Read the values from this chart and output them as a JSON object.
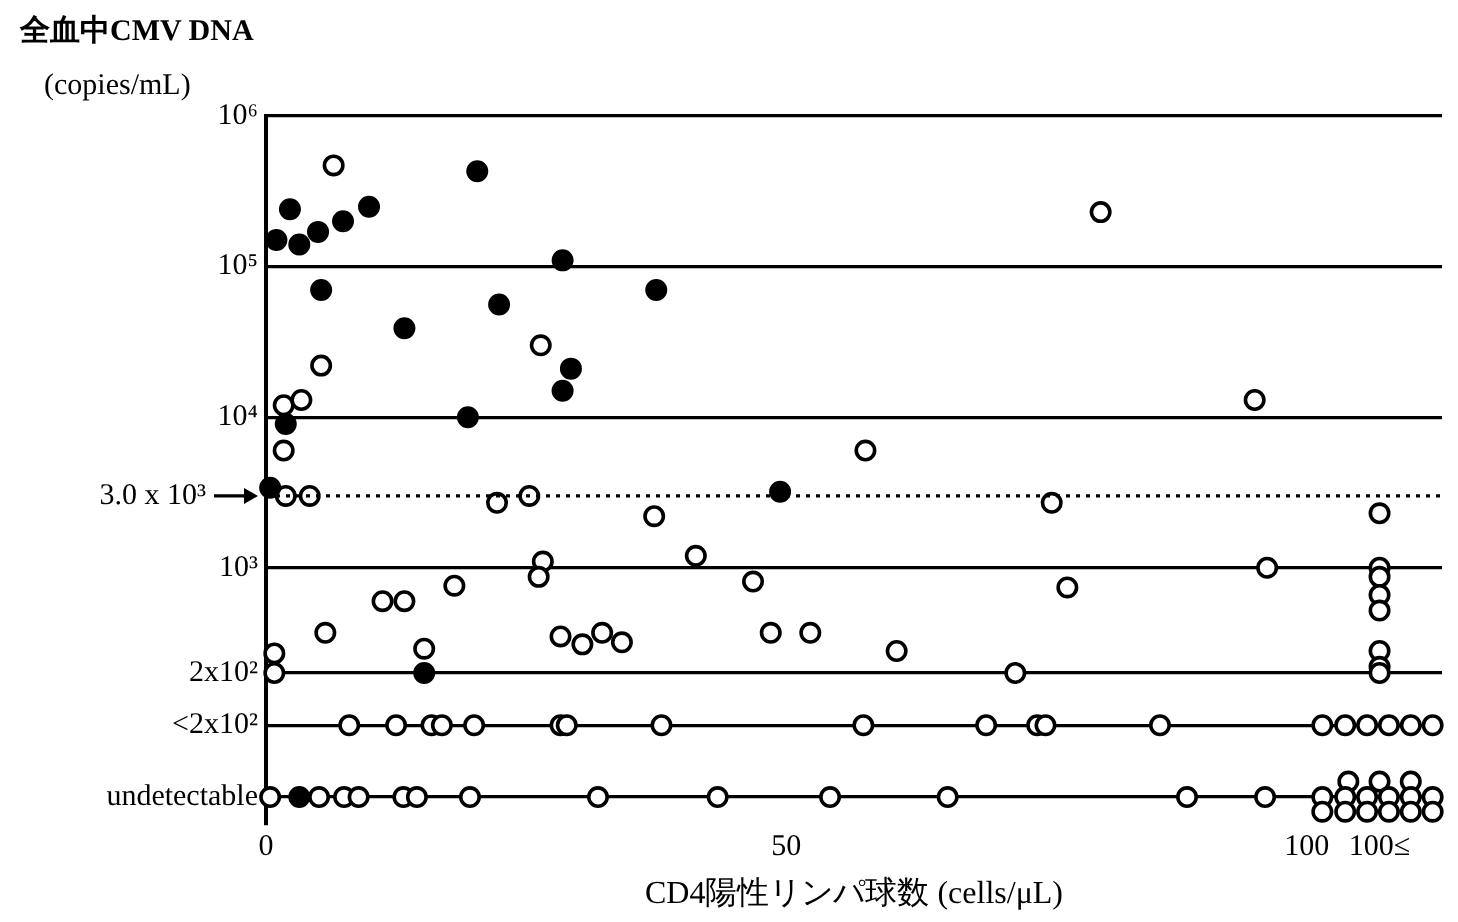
{
  "chart_data": {
    "type": "scatter",
    "ylabel": "全血中CMV DNA\n(copies/mL)",
    "xlabel": "CD4陽性リンパ球数 (cells/μL)",
    "log": "y",
    "grid": "y",
    "legend": false,
    "marker": "circle",
    "xlim": [
      0,
      113
    ],
    "xticks": [
      0,
      50,
      100,
      {
        "value": 107,
        "label": "100≤"
      }
    ],
    "ylim": [
      20,
      1000000
    ],
    "yticks": [
      {
        "value": 1000000,
        "label": "10⁶"
      },
      {
        "value": 100000,
        "label": "10⁵"
      },
      {
        "value": 10000,
        "label": "10⁴"
      },
      {
        "value": 1000,
        "label": "10³"
      },
      {
        "value": 200,
        "label": "2x10²"
      },
      {
        "value": 90,
        "label": "<2x10²"
      },
      {
        "value": 30,
        "label": "undetectable"
      }
    ],
    "ref_lines": [
      {
        "axis": "y",
        "value": 3000,
        "label": "3.0 x 10³",
        "line_style": "dotted"
      }
    ],
    "series": [
      {
        "color": "#000000",
        "x": [
          1,
          2.3,
          3.2,
          5,
          7.4,
          9.9,
          20.3,
          28.5,
          5.3,
          13.3,
          22.4,
          28.5,
          29.3,
          19.4,
          1.9,
          37.5,
          0.4,
          49.4,
          15.2,
          3.2
        ],
        "values": [
          150000,
          240000,
          140000,
          170000,
          200000,
          250000,
          430000,
          110000,
          70000,
          39000,
          56000,
          15000,
          21000,
          10000,
          9000,
          70000,
          3400,
          3200,
          200,
          30
        ]
      },
      {
        "color": "#ffffff",
        "x": [
          6.5,
          5.3,
          26.4,
          80.2,
          95,
          57.6,
          1.7,
          3.4,
          1.7,
          1.9,
          4.2,
          22.2,
          25.3,
          37.3,
          26.6,
          26.2,
          41.3,
          18.1,
          11.2,
          13.3,
          5.7,
          15.2,
          0.8,
          0.8,
          28.3,
          30.4,
          32.3,
          34.2,
          46.8,
          48.5,
          52.3,
          60.6,
          72,
          75.5,
          77,
          96.2,
          107,
          107,
          107,
          107,
          107,
          107,
          107,
          107,
          8,
          12.5,
          15.9,
          16.9,
          20,
          28.3,
          28.9,
          38,
          57.4,
          69.2,
          74.1,
          74.9,
          85.9,
          101.5,
          103.7,
          105.8,
          107.9,
          110,
          112.1,
          0.4,
          5.1,
          7.5,
          8.9,
          13.2,
          14.5,
          19.6,
          31.9,
          43.4,
          54.2,
          65.5,
          88.5,
          96,
          104,
          107,
          110,
          101.5,
          103.7,
          105.8,
          107.9,
          110,
          112.1,
          101.5,
          103.7,
          105.8,
          107.9,
          110,
          112.1
        ],
        "values": [
          470000,
          22000,
          30000,
          230000,
          13000,
          6000,
          12000,
          13000,
          6000,
          3000,
          3000,
          2700,
          3000,
          2200,
          1100,
          870,
          1200,
          760,
          600,
          600,
          370,
          290,
          270,
          200,
          350,
          310,
          370,
          320,
          810,
          370,
          370,
          280,
          200,
          2700,
          740,
          1000,
          2300,
          1000,
          870,
          660,
          520,
          280,
          220,
          200,
          90,
          90,
          90,
          90,
          90,
          90,
          90,
          90,
          90,
          90,
          90,
          90,
          90,
          90,
          90,
          90,
          90,
          90,
          90,
          30,
          30,
          30,
          30,
          30,
          30,
          30,
          30,
          30,
          30,
          30,
          30,
          30,
          38,
          38,
          38,
          30,
          30,
          30,
          30,
          30,
          30,
          24,
          24,
          24,
          24,
          24,
          24
        ]
      }
    ]
  }
}
